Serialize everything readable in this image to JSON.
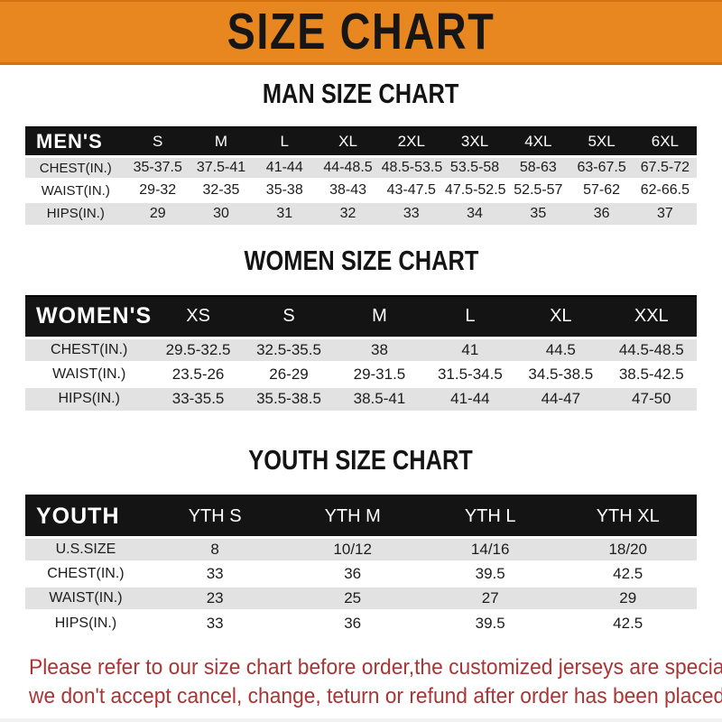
{
  "banner": {
    "title": "SIZE CHART"
  },
  "colors": {
    "banner_bg": "#E8871F",
    "header_bar": "#141414",
    "row_shade": "#E2E2E2",
    "note_red": "#A93534"
  },
  "sections": [
    {
      "id": "men",
      "heading": "MAN SIZE CHART",
      "header_label": "MEN'S",
      "columns": [
        "S",
        "M",
        "L",
        "XL",
        "2XL",
        "3XL",
        "4XL",
        "5XL",
        "6XL"
      ],
      "rows": [
        {
          "label": "CHEST(IN.)",
          "values": [
            "35-37.5",
            "37.5-41",
            "41-44",
            "44-48.5",
            "48.5-53.5",
            "53.5-58",
            "58-63",
            "63-67.5",
            "67.5-72"
          ]
        },
        {
          "label": "WAIST(IN.)",
          "values": [
            "29-32",
            "32-35",
            "35-38",
            "38-43",
            "43-47.5",
            "47.5-52.5",
            "52.5-57",
            "57-62",
            "62-66.5"
          ]
        },
        {
          "label": "HIPS(IN.)",
          "values": [
            "29",
            "30",
            "31",
            "32",
            "33",
            "34",
            "35",
            "36",
            "37"
          ]
        }
      ]
    },
    {
      "id": "women",
      "heading": "WOMEN SIZE CHART",
      "header_label": "WOMEN'S",
      "columns": [
        "XS",
        "S",
        "M",
        "L",
        "XL",
        "XXL"
      ],
      "rows": [
        {
          "label": "CHEST(IN.)",
          "values": [
            "29.5-32.5",
            "32.5-35.5",
            "38",
            "41",
            "44.5",
            "44.5-48.5"
          ]
        },
        {
          "label": "WAIST(IN.)",
          "values": [
            "23.5-26",
            "26-29",
            "29-31.5",
            "31.5-34.5",
            "34.5-38.5",
            "38.5-42.5"
          ]
        },
        {
          "label": "HIPS(IN.)",
          "values": [
            "33-35.5",
            "35.5-38.5",
            "38.5-41",
            "41-44",
            "44-47",
            "47-50"
          ]
        }
      ]
    },
    {
      "id": "youth",
      "heading": "YOUTH SIZE CHART",
      "header_label": "YOUTH",
      "columns": [
        "YTH S",
        "YTH M",
        "YTH L",
        "YTH XL"
      ],
      "rows": [
        {
          "label": "U.S.SIZE",
          "values": [
            "8",
            "10/12",
            "14/16",
            "18/20"
          ]
        },
        {
          "label": "CHEST(IN.)",
          "values": [
            "33",
            "36",
            "39.5",
            "42.5"
          ]
        },
        {
          "label": "WAIST(IN.)",
          "values": [
            "23",
            "25",
            "27",
            "29"
          ]
        },
        {
          "label": "HIPS(IN.)",
          "values": [
            "33",
            "36",
            "39.5",
            "42.5"
          ]
        }
      ]
    }
  ],
  "footer": {
    "line1": "Please refer to our size chart before order,the customized jerseys are special products,",
    "line2": "we don't accept cancel, change, teturn or refund after order has been placed!"
  }
}
